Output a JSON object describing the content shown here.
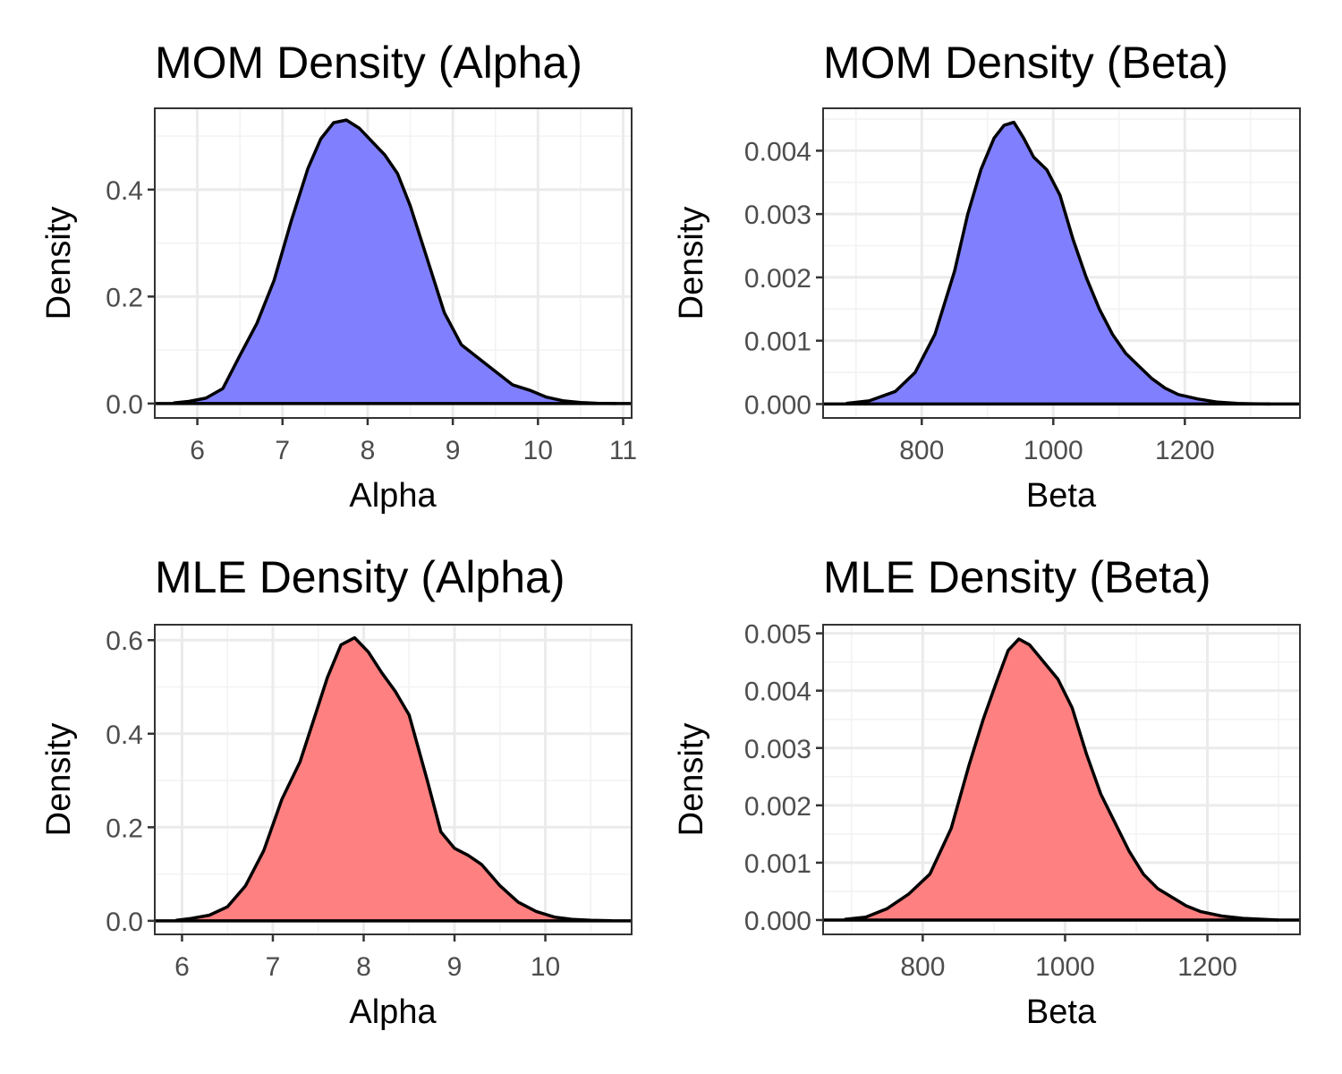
{
  "chart_data": [
    {
      "type": "area",
      "title": "MOM Density (Alpha)",
      "xlabel": "Alpha",
      "ylabel": "Density",
      "fill_color": "#8080ff",
      "xlim": [
        5.5,
        11.1
      ],
      "ylim": [
        -0.027,
        0.552
      ],
      "x_ticks": [
        6,
        7,
        8,
        9,
        10,
        11
      ],
      "x_tick_labels": [
        "6",
        "7",
        "8",
        "9",
        "10",
        "11"
      ],
      "y_ticks": [
        0.0,
        0.2,
        0.4
      ],
      "y_tick_labels": [
        "0.0",
        "0.2",
        "0.4"
      ],
      "grid": true,
      "x": [
        5.72,
        5.9,
        6.1,
        6.3,
        6.5,
        6.7,
        6.9,
        7.1,
        7.3,
        7.45,
        7.6,
        7.75,
        7.9,
        8.05,
        8.2,
        8.35,
        8.5,
        8.7,
        8.9,
        9.1,
        9.3,
        9.5,
        9.7,
        9.9,
        10.1,
        10.3,
        10.5,
        10.7,
        10.92
      ],
      "y": [
        0.001,
        0.004,
        0.01,
        0.028,
        0.09,
        0.15,
        0.23,
        0.34,
        0.44,
        0.495,
        0.525,
        0.53,
        0.515,
        0.49,
        0.465,
        0.43,
        0.37,
        0.27,
        0.17,
        0.11,
        0.085,
        0.06,
        0.035,
        0.025,
        0.012,
        0.005,
        0.002,
        0.0005,
        0.0
      ]
    },
    {
      "type": "area",
      "title": "MOM Density (Beta)",
      "xlabel": "Beta",
      "ylabel": "Density",
      "fill_color": "#8080ff",
      "xlim": [
        650,
        1375
      ],
      "ylim": [
        -0.00022,
        0.00467
      ],
      "x_ticks": [
        800,
        1000,
        1200
      ],
      "x_tick_labels": [
        "800",
        "1000",
        "1200"
      ],
      "y_ticks": [
        0.0,
        0.001,
        0.002,
        0.003,
        0.004
      ],
      "y_tick_labels": [
        "0.000",
        "0.001",
        "0.002",
        "0.003",
        "0.004"
      ],
      "grid": true,
      "x": [
        685,
        720,
        760,
        790,
        820,
        850,
        870,
        890,
        910,
        925,
        940,
        955,
        970,
        990,
        1010,
        1030,
        1050,
        1070,
        1090,
        1110,
        1130,
        1150,
        1170,
        1190,
        1220,
        1250,
        1280,
        1300,
        1330
      ],
      "y": [
        1e-05,
        5e-05,
        0.0002,
        0.0005,
        0.0011,
        0.0021,
        0.003,
        0.0037,
        0.0042,
        0.0044,
        0.00445,
        0.0042,
        0.0039,
        0.0037,
        0.0033,
        0.0026,
        0.002,
        0.0015,
        0.0011,
        0.0008,
        0.0006,
        0.0004,
        0.00025,
        0.00015,
        8e-05,
        3e-05,
        1e-05,
        5e-06,
        0.0
      ]
    },
    {
      "type": "area",
      "title": "MLE Density (Alpha)",
      "xlabel": "Alpha",
      "ylabel": "Density",
      "fill_color": "#ff8080",
      "xlim": [
        5.7,
        10.95
      ],
      "ylim": [
        -0.029,
        0.633
      ],
      "x_ticks": [
        6,
        7,
        8,
        9,
        10
      ],
      "x_tick_labels": [
        "6",
        "7",
        "8",
        "9",
        "10"
      ],
      "y_ticks": [
        0.0,
        0.2,
        0.4,
        0.6
      ],
      "y_tick_labels": [
        "0.0",
        "0.2",
        "0.4",
        "0.6"
      ],
      "grid": true,
      "x": [
        5.93,
        6.1,
        6.3,
        6.5,
        6.7,
        6.9,
        7.1,
        7.3,
        7.45,
        7.6,
        7.75,
        7.9,
        8.05,
        8.2,
        8.35,
        8.5,
        8.7,
        8.85,
        9.0,
        9.15,
        9.3,
        9.5,
        9.7,
        9.9,
        10.1,
        10.3,
        10.5,
        10.73
      ],
      "y": [
        0.001,
        0.005,
        0.012,
        0.03,
        0.075,
        0.15,
        0.26,
        0.34,
        0.43,
        0.52,
        0.59,
        0.605,
        0.575,
        0.53,
        0.49,
        0.44,
        0.3,
        0.19,
        0.155,
        0.14,
        0.12,
        0.075,
        0.04,
        0.02,
        0.008,
        0.003,
        0.001,
        0.0
      ]
    },
    {
      "type": "area",
      "title": "MLE Density (Beta)",
      "xlabel": "Beta",
      "ylabel": "Density",
      "fill_color": "#ff8080",
      "xlim": [
        660,
        1330
      ],
      "ylim": [
        -0.00025,
        0.00515
      ],
      "x_ticks": [
        800,
        1000,
        1200
      ],
      "x_tick_labels": [
        "800",
        "1000",
        "1200"
      ],
      "y_ticks": [
        0.0,
        0.001,
        0.002,
        0.003,
        0.004,
        0.005
      ],
      "y_tick_labels": [
        "0.000",
        "0.001",
        "0.002",
        "0.003",
        "0.004",
        "0.005"
      ],
      "grid": true,
      "x": [
        690,
        720,
        750,
        780,
        810,
        840,
        865,
        885,
        905,
        920,
        935,
        950,
        970,
        990,
        1010,
        1030,
        1050,
        1070,
        1090,
        1110,
        1130,
        1150,
        1170,
        1190,
        1220,
        1250,
        1280,
        1300
      ],
      "y": [
        1e-05,
        5e-05,
        0.0002,
        0.00045,
        0.0008,
        0.0016,
        0.0027,
        0.0035,
        0.0042,
        0.0047,
        0.0049,
        0.0048,
        0.0045,
        0.0042,
        0.0037,
        0.0029,
        0.0022,
        0.0017,
        0.0012,
        0.0008,
        0.00055,
        0.0004,
        0.00025,
        0.00015,
        7e-05,
        3e-05,
        1e-05,
        0.0
      ]
    }
  ]
}
